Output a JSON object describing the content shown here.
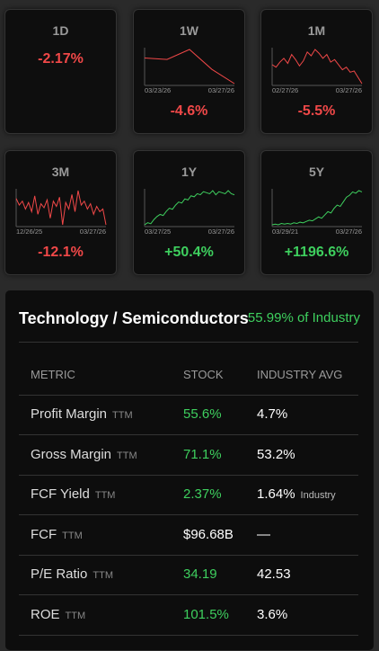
{
  "performance": [
    {
      "period": "1D",
      "change": "-2.17%",
      "color": "#f04848"
    },
    {
      "period": "1W",
      "change": "-4.6%",
      "color": "#f04848",
      "start_date": "03/23/26",
      "end_date": "03/27/26",
      "values": [
        100,
        99.5,
        103,
        96,
        91
      ]
    },
    {
      "period": "1M",
      "change": "-5.5%",
      "color": "#f04848",
      "start_date": "02/27/26",
      "end_date": "03/27/26",
      "values": [
        70,
        68,
        72,
        75,
        71,
        78,
        74,
        69,
        73,
        80,
        77,
        82,
        79,
        75,
        78,
        72,
        74,
        70,
        66,
        68,
        64,
        65,
        60,
        55
      ]
    },
    {
      "period": "3M",
      "change": "-12.1%",
      "color": "#f04848",
      "start_date": "12/26/25",
      "end_date": "03/27/26",
      "values": [
        60,
        55,
        58,
        52,
        57,
        50,
        62,
        48,
        56,
        53,
        59,
        45,
        58,
        54,
        61,
        40,
        57,
        52,
        63,
        50,
        66,
        55,
        58,
        52,
        56,
        48,
        54,
        50,
        52,
        40
      ]
    },
    {
      "period": "1Y",
      "change": "+50.4%",
      "color": "#3ecf5e",
      "start_date": "03/27/25",
      "end_date": "03/27/26",
      "values": [
        20,
        22,
        21,
        25,
        28,
        30,
        29,
        33,
        36,
        35,
        39,
        42,
        41,
        45,
        44,
        48,
        47,
        50,
        49,
        52,
        51,
        50,
        53,
        49,
        52,
        51,
        50,
        53,
        50,
        49
      ]
    },
    {
      "period": "5Y",
      "change": "+1196.6%",
      "color": "#3ecf5e",
      "start_date": "03/29/21",
      "end_date": "03/27/26",
      "values": [
        10,
        11,
        10,
        12,
        11,
        12,
        11,
        13,
        12,
        14,
        13,
        15,
        17,
        16,
        19,
        22,
        20,
        25,
        30,
        28,
        35,
        40,
        38,
        45,
        52,
        55,
        60,
        58,
        62,
        60
      ]
    }
  ],
  "industry": {
    "title": "Technology / Semiconductors",
    "share": "55.99% of Industry"
  },
  "table": {
    "headers": [
      "METRIC",
      "STOCK",
      "INDUSTRY AVG"
    ],
    "rows": [
      {
        "metric": "Profit Margin",
        "period": "TTM",
        "stock": "55.6%",
        "stock_color": "#3ecf5e",
        "industry": "4.7%"
      },
      {
        "metric": "Gross Margin",
        "period": "TTM",
        "stock": "71.1%",
        "stock_color": "#3ecf5e",
        "industry": "53.2%"
      },
      {
        "metric": "FCF Yield",
        "period": "TTM",
        "stock": "2.37%",
        "stock_color": "#3ecf5e",
        "industry": "1.64%",
        "industry_note": "Industry"
      },
      {
        "metric": "FCF",
        "period": "TTM",
        "stock": "$96.68B",
        "stock_color": "#ffffff",
        "industry": "—"
      },
      {
        "metric": "P/E Ratio",
        "period": "TTM",
        "stock": "34.19",
        "stock_color": "#3ecf5e",
        "industry": "42.53"
      },
      {
        "metric": "ROE",
        "period": "TTM",
        "stock": "101.5%",
        "stock_color": "#3ecf5e",
        "industry": "3.6%"
      }
    ]
  }
}
